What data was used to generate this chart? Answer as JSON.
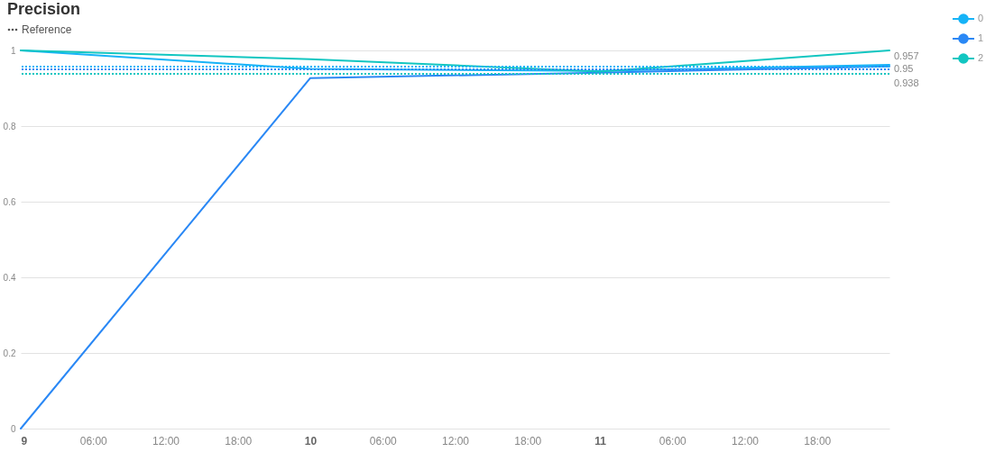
{
  "chart_data": {
    "type": "line",
    "title": "Precision",
    "subtitle": "Reference",
    "x": [
      "--01-09",
      "--01-10",
      "--01-11",
      "--01-12"
    ],
    "xlim": [
      "--01-09",
      "--01-12"
    ],
    "xticks": [
      {
        "value": "--01-09",
        "label": "9"
      },
      {
        "value": "--01-09T06:00",
        "label": "06:00"
      },
      {
        "value": "--01-09T12:00",
        "label": "12:00"
      },
      {
        "value": "--01-09T18:00",
        "label": "18:00"
      },
      {
        "value": "--01-10",
        "label": "10"
      },
      {
        "value": "--01-10T06:00",
        "label": "06:00"
      },
      {
        "value": "--01-10T12:00",
        "label": "12:00"
      },
      {
        "value": "--01-10T18:00",
        "label": "18:00"
      },
      {
        "value": "--01-11",
        "label": "11"
      },
      {
        "value": "--01-11T06:00",
        "label": "06:00"
      },
      {
        "value": "--01-11T12:00",
        "label": "12:00"
      },
      {
        "value": "--01-11T18:00",
        "label": "18:00"
      }
    ],
    "ylim": [
      0,
      1
    ],
    "yticks": [
      0,
      0.2,
      0.4,
      0.6,
      0.8,
      1
    ],
    "series": [
      {
        "name": "0",
        "color": "#16b3f7",
        "values": [
          1,
          0.951,
          0.946,
          0.962
        ]
      },
      {
        "name": "1",
        "color": "#2a88f5",
        "values": [
          0,
          0.927,
          0.941,
          0.958
        ]
      },
      {
        "name": "2",
        "color": "#12c6c1",
        "values": [
          1,
          0.977,
          0.944,
          1
        ]
      }
    ],
    "ref_lines": [
      {
        "axis": "y",
        "value": 0.957,
        "label": "0.957",
        "color": "#16b3f7",
        "line_style": "dotted"
      },
      {
        "axis": "y",
        "value": 0.95,
        "label": "0.95",
        "color": "#2a88f5",
        "line_style": "dotted"
      },
      {
        "axis": "y",
        "value": 0.938,
        "label": "0.938",
        "color": "#12c6c1",
        "line_style": "dotted"
      }
    ],
    "grid": "y",
    "legend": "top right"
  }
}
